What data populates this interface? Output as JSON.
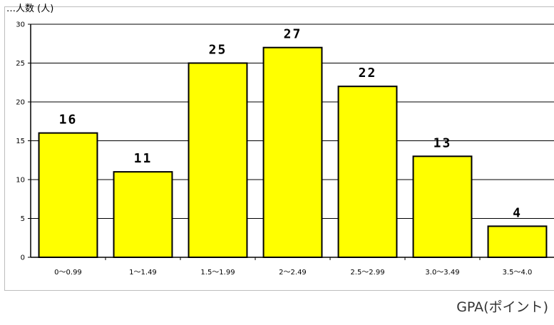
{
  "top_label": "…人数 (人)",
  "x_unit": "GPA(ポイント)",
  "chart_data": {
    "type": "bar",
    "categories": [
      "0～0.99",
      "1～1.49",
      "1.5～1.99",
      "2～2.49",
      "2.5～2.99",
      "3.0～3.49",
      "3.5～4.0"
    ],
    "values": [
      16,
      11,
      25,
      27,
      22,
      13,
      4
    ],
    "data_labels": [
      "16",
      "11",
      "25",
      "27",
      "22",
      "13",
      "4"
    ],
    "title": "",
    "xlabel": "GPA(ポイント)",
    "ylabel": "",
    "ylim": [
      0,
      30
    ],
    "yticks": [
      "0",
      "5",
      "10",
      "15",
      "20",
      "25",
      "30"
    ],
    "grid": true,
    "legend": "none",
    "colors": {
      "bar_fill": "#ffff00",
      "bar_stroke": "#000000",
      "grid": "#000000",
      "axis": "#000000"
    }
  }
}
